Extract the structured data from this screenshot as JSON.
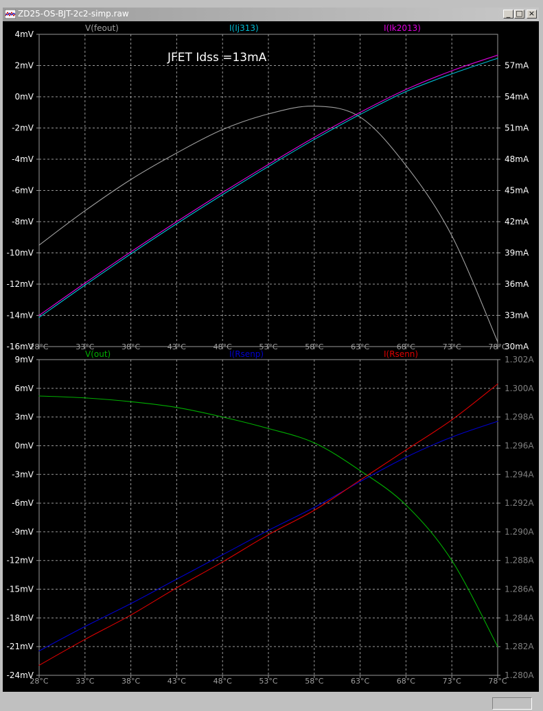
{
  "window": {
    "title": "ZD25-OS-BJT-2c2-simp.raw",
    "buttons": {
      "minimize": "_",
      "maximize": "□",
      "close": "×"
    },
    "background": "#c0c0c0"
  },
  "plot_background": "#000000",
  "grid_color": "#9a9a9a",
  "chart_data": [
    {
      "type": "line",
      "xlabel": "",
      "x_ticks": [
        "28°C",
        "33°C",
        "38°C",
        "43°C",
        "48°C",
        "53°C",
        "58°C",
        "63°C",
        "68°C",
        "73°C",
        "78°C"
      ],
      "xlim": [
        28,
        78
      ],
      "annotation": "JFET Idss =13mA",
      "left_axis": {
        "unit": "mV",
        "ylim": [
          -16,
          4
        ],
        "ticks": [
          "4mV",
          "2mV",
          "0mV",
          "-2mV",
          "-4mV",
          "-6mV",
          "-8mV",
          "-10mV",
          "-12mV",
          "-14mV",
          "-16mV"
        ],
        "tick_color": "#ffffff"
      },
      "right_axis": {
        "unit": "mA",
        "ylim": [
          30,
          60
        ],
        "ticks": [
          "57mA",
          "54mA",
          "51mA",
          "48mA",
          "45mA",
          "42mA",
          "39mA",
          "36mA",
          "33mA",
          "30mA"
        ],
        "tick_values": [
          57,
          54,
          51,
          48,
          45,
          42,
          39,
          36,
          33,
          30
        ],
        "tick_color": "#ffffff"
      },
      "series": [
        {
          "name": "V(feout)",
          "axis": "left",
          "color": "#a0a0a0",
          "x": [
            28,
            33,
            38,
            43,
            48,
            53,
            58,
            63,
            68,
            73,
            78
          ],
          "y": [
            -9.5,
            -7.3,
            -5.3,
            -3.6,
            -2.1,
            -1.1,
            -0.6,
            -1.3,
            -4.4,
            -8.9,
            -15.7
          ]
        },
        {
          "name": "I(Ij313)",
          "axis": "right",
          "color": "#00bcd4",
          "x": [
            28,
            33,
            38,
            43,
            48,
            53,
            58,
            63,
            68,
            73,
            78
          ],
          "y": [
            32.8,
            35.9,
            38.9,
            41.8,
            44.6,
            47.3,
            49.9,
            52.3,
            54.5,
            56.2,
            57.7
          ]
        },
        {
          "name": "I(Ik2013)",
          "axis": "right",
          "color": "#e000e0",
          "x": [
            28,
            33,
            38,
            43,
            48,
            53,
            58,
            63,
            68,
            73,
            78
          ],
          "y": [
            33.0,
            36.1,
            39.1,
            42.0,
            44.8,
            47.5,
            50.1,
            52.5,
            54.7,
            56.5,
            58.0
          ]
        }
      ]
    },
    {
      "type": "line",
      "xlabel": "",
      "x_ticks": [
        "28°C",
        "33°C",
        "38°C",
        "43°C",
        "48°C",
        "53°C",
        "58°C",
        "63°C",
        "68°C",
        "73°C",
        "78°C"
      ],
      "xlim": [
        28,
        78
      ],
      "left_axis": {
        "unit": "mV",
        "ylim": [
          -24,
          9
        ],
        "ticks": [
          "9mV",
          "6mV",
          "3mV",
          "0mV",
          "-3mV",
          "-6mV",
          "-9mV",
          "-12mV",
          "-15mV",
          "-18mV",
          "-21mV",
          "-24mV"
        ],
        "tick_color": "#ffffff"
      },
      "right_axis": {
        "unit": "A",
        "ylim": [
          1.28,
          1.302
        ],
        "ticks": [
          "1.302A",
          "1.300A",
          "1.298A",
          "1.296A",
          "1.294A",
          "1.292A",
          "1.290A",
          "1.288A",
          "1.286A",
          "1.284A",
          "1.282A",
          "1.280A"
        ],
        "tick_values": [
          1.302,
          1.3,
          1.298,
          1.296,
          1.294,
          1.292,
          1.29,
          1.288,
          1.286,
          1.284,
          1.282,
          1.28
        ],
        "tick_color": "#808080"
      },
      "series": [
        {
          "name": "V(out)",
          "axis": "left",
          "color": "#00b000",
          "x": [
            28,
            33,
            38,
            43,
            48,
            53,
            58,
            63,
            68,
            73,
            78
          ],
          "y": [
            5.2,
            5.0,
            4.6,
            4.0,
            3.0,
            1.8,
            0.3,
            -2.6,
            -6.2,
            -12.0,
            -21.0
          ]
        },
        {
          "name": "I(Rsenp)",
          "axis": "right",
          "color": "#0000d0",
          "x": [
            28,
            33,
            38,
            43,
            48,
            53,
            58,
            63,
            68,
            73,
            78
          ],
          "y": [
            1.2817,
            1.2834,
            1.285,
            1.2867,
            1.2884,
            1.2901,
            1.2917,
            1.2935,
            1.2952,
            1.2966,
            1.2977
          ]
        },
        {
          "name": "I(Rsenn)",
          "axis": "right",
          "color": "#e00000",
          "x": [
            28,
            33,
            38,
            43,
            48,
            53,
            58,
            63,
            68,
            73,
            78
          ],
          "y": [
            1.2807,
            1.2825,
            1.2842,
            1.2861,
            1.2879,
            1.2898,
            1.2915,
            1.2936,
            1.2957,
            1.2978,
            1.3003
          ]
        }
      ]
    }
  ]
}
